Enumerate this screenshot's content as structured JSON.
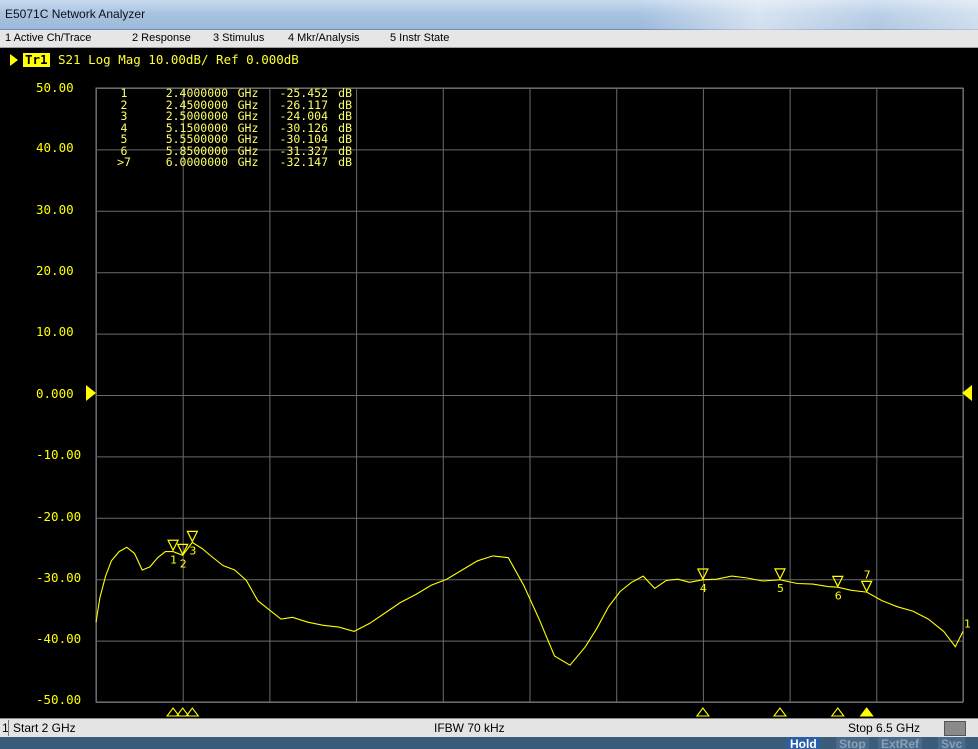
{
  "window": {
    "title": "E5071C Network Analyzer"
  },
  "menu": [
    {
      "label": "1 Active Ch/Trace"
    },
    {
      "label": "2 Response"
    },
    {
      "label": "3 Stimulus"
    },
    {
      "label": "4 Mkr/Analysis"
    },
    {
      "label": "5 Instr State"
    }
  ],
  "trace": {
    "badge": "Tr1",
    "description": "S21 Log Mag 10.00dB/ Ref 0.000dB",
    "color": "#ffff00"
  },
  "markers": [
    {
      "id": "1",
      "freq": "2.4000000",
      "unit": "GHz",
      "value": "-25.452",
      "value_unit": "dB"
    },
    {
      "id": "2",
      "freq": "2.4500000",
      "unit": "GHz",
      "value": "-26.117",
      "value_unit": "dB"
    },
    {
      "id": "3",
      "freq": "2.5000000",
      "unit": "GHz",
      "value": "-24.004",
      "value_unit": "dB"
    },
    {
      "id": "4",
      "freq": "5.1500000",
      "unit": "GHz",
      "value": "-30.126",
      "value_unit": "dB"
    },
    {
      "id": "5",
      "freq": "5.5500000",
      "unit": "GHz",
      "value": "-30.104",
      "value_unit": "dB"
    },
    {
      "id": "6",
      "freq": "5.8500000",
      "unit": "GHz",
      "value": "-31.327",
      "value_unit": "dB"
    },
    {
      "id": ">7",
      "freq": "6.0000000",
      "unit": "GHz",
      "value": "-32.147",
      "value_unit": "dB"
    }
  ],
  "chart_data": {
    "type": "line",
    "xlim": [
      2.0,
      6.5
    ],
    "ylim": [
      -50,
      50
    ],
    "yticks": [
      "50.00",
      "40.00",
      "30.00",
      "20.00",
      "10.00",
      "0.000",
      "-10.00",
      "-20.00",
      "-30.00",
      "-40.00",
      "-50.00"
    ],
    "grid": true,
    "series": [
      {
        "name": "S21",
        "color": "#ffff00",
        "x": [
          2.0,
          2.02,
          2.05,
          2.08,
          2.12,
          2.16,
          2.2,
          2.24,
          2.28,
          2.32,
          2.36,
          2.4,
          2.45,
          2.5,
          2.55,
          2.6,
          2.66,
          2.72,
          2.78,
          2.84,
          2.9,
          2.96,
          3.02,
          3.1,
          3.18,
          3.26,
          3.34,
          3.42,
          3.5,
          3.58,
          3.66,
          3.74,
          3.82,
          3.9,
          3.98,
          4.06,
          4.14,
          4.22,
          4.3,
          4.38,
          4.46,
          4.54,
          4.6,
          4.66,
          4.72,
          4.78,
          4.84,
          4.9,
          4.96,
          5.02,
          5.08,
          5.15,
          5.22,
          5.3,
          5.38,
          5.46,
          5.55,
          5.64,
          5.72,
          5.8,
          5.85,
          5.92,
          6.0,
          6.08,
          6.16,
          6.24,
          6.32,
          6.4,
          6.46,
          6.5
        ],
        "values": [
          -37,
          -33,
          -29.5,
          -27,
          -25.5,
          -24.8,
          -25.8,
          -28.5,
          -28,
          -26.5,
          -25.5,
          -25.5,
          -26.1,
          -24.0,
          -25.0,
          -26.3,
          -27.8,
          -28.5,
          -30.2,
          -33.5,
          -35.0,
          -36.5,
          -36.2,
          -37.0,
          -37.5,
          -37.8,
          -38.5,
          -37.2,
          -35.5,
          -33.8,
          -32.5,
          -31.0,
          -30.0,
          -28.5,
          -27.0,
          -26.2,
          -26.5,
          -31.0,
          -36.5,
          -42.5,
          -44.0,
          -41.0,
          -38.0,
          -34.5,
          -32.0,
          -30.5,
          -29.5,
          -31.5,
          -30.2,
          -30.0,
          -30.5,
          -30.1,
          -30.0,
          -29.5,
          -29.8,
          -30.3,
          -30.1,
          -30.7,
          -30.8,
          -31.2,
          -31.3,
          -31.8,
          -32.1,
          -33.5,
          -34.5,
          -35.2,
          -36.5,
          -38.5,
          -41.0,
          -38.5
        ]
      }
    ],
    "markers": [
      {
        "label": "1",
        "x": 2.4,
        "y": -25.452
      },
      {
        "label": "2",
        "x": 2.45,
        "y": -26.117
      },
      {
        "label": "3",
        "x": 2.5,
        "y": -24.004
      },
      {
        "label": "4",
        "x": 5.15,
        "y": -30.126
      },
      {
        "label": "5",
        "x": 5.55,
        "y": -30.104
      },
      {
        "label": "6",
        "x": 5.85,
        "y": -31.327
      },
      {
        "label": "7",
        "x": 6.0,
        "y": -32.147
      }
    ],
    "end_label": "1"
  },
  "status": {
    "channel": "1",
    "start": "Start 2 GHz",
    "ifbw": "IFBW 70 kHz",
    "stop": "Stop 6.5 GHz"
  },
  "bottom": {
    "hold": "Hold",
    "stop": "Stop",
    "extref": "ExtRef",
    "svc": "Svc"
  }
}
